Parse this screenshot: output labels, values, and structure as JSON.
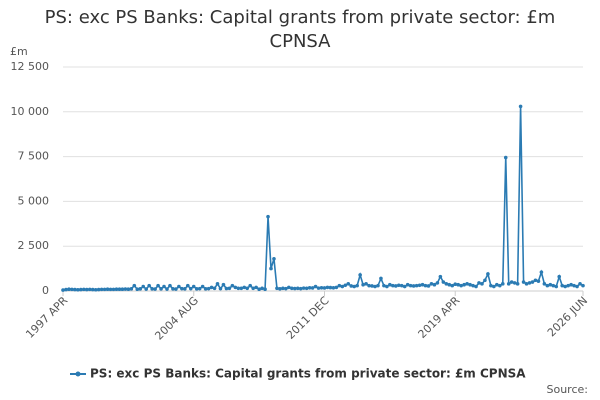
{
  "chart_data": {
    "type": "line",
    "title": "PS: exc PS Banks: Capital grants from private sector: £m CPNSA",
    "y_label": "£m",
    "source": "Source:",
    "categories": [
      "1997 APR",
      null,
      null,
      null,
      null,
      null,
      null,
      null,
      null,
      null,
      null,
      null,
      null,
      null,
      null,
      null,
      null,
      null,
      null,
      null,
      null,
      null,
      null,
      null,
      null,
      null,
      null,
      null,
      null,
      null,
      null,
      null,
      null,
      null,
      null,
      null,
      null,
      null,
      null,
      null,
      null,
      null,
      null,
      null,
      "2004 AUG",
      null,
      null,
      null,
      null,
      null,
      null,
      null,
      null,
      null,
      null,
      null,
      null,
      null,
      null,
      null,
      null,
      null,
      null,
      null,
      null,
      null,
      null,
      null,
      null,
      null,
      null,
      null,
      null,
      null,
      null,
      null,
      null,
      null,
      null,
      null,
      null,
      null,
      null,
      null,
      null,
      null,
      null,
      null,
      "2011 DEC",
      null,
      null,
      null,
      null,
      null,
      null,
      null,
      null,
      null,
      null,
      null,
      null,
      null,
      null,
      null,
      null,
      null,
      null,
      null,
      null,
      null,
      null,
      null,
      null,
      null,
      null,
      null,
      null,
      null,
      null,
      null,
      null,
      null,
      null,
      null,
      null,
      null,
      null,
      null,
      null,
      null,
      null,
      null,
      "2019 APR",
      null,
      null,
      null,
      null,
      null,
      null,
      null,
      null,
      null,
      null,
      null,
      null,
      null,
      null,
      null,
      null,
      null,
      null,
      null,
      null,
      null,
      null,
      null,
      null,
      null,
      null,
      null,
      null,
      null,
      null,
      null,
      null,
      null,
      null,
      null,
      null,
      null,
      null,
      null,
      null,
      null,
      null,
      "2026 JUN"
    ],
    "series": [
      {
        "name": "PS: exc PS Banks: Capital grants from private sector: £m CPNSA",
        "color": "#2b7bb3",
        "values": [
          50,
          80,
          100,
          90,
          80,
          70,
          80,
          90,
          80,
          90,
          80,
          70,
          80,
          90,
          90,
          100,
          90,
          90,
          100,
          100,
          100,
          110,
          100,
          120,
          300,
          100,
          120,
          250,
          110,
          300,
          120,
          110,
          300,
          120,
          250,
          110,
          300,
          120,
          110,
          250,
          130,
          120,
          300,
          130,
          250,
          120,
          130,
          250,
          120,
          130,
          200,
          150,
          400,
          130,
          350,
          140,
          150,
          300,
          200,
          150,
          150,
          200,
          150,
          300,
          150,
          200,
          100,
          150,
          100,
          4150,
          1250,
          1800,
          150,
          120,
          150,
          130,
          200,
          150,
          140,
          150,
          130,
          160,
          150,
          180,
          170,
          250,
          160,
          180,
          170,
          200,
          190,
          180,
          200,
          300,
          250,
          320,
          400,
          280,
          250,
          300,
          900,
          350,
          400,
          300,
          280,
          250,
          300,
          700,
          300,
          250,
          350,
          300,
          280,
          320,
          300,
          250,
          350,
          300,
          280,
          300,
          320,
          350,
          300,
          280,
          400,
          350,
          450,
          800,
          500,
          400,
          350,
          300,
          380,
          350,
          300,
          350,
          400,
          350,
          300,
          250,
          450,
          400,
          600,
          950,
          300,
          250,
          350,
          300,
          400,
          7450,
          400,
          500,
          450,
          400,
          10300,
          500,
          400,
          450,
          500,
          600,
          550,
          1050,
          400,
          300,
          350,
          300,
          250,
          800,
          300,
          250,
          300,
          350,
          300,
          250,
          400,
          300
        ]
      }
    ],
    "ylim": [
      0,
      12500
    ],
    "yticks": [
      {
        "value": 0,
        "label": "0"
      },
      {
        "value": 2500,
        "label": "2 500"
      },
      {
        "value": 5000,
        "label": "5 000"
      },
      {
        "value": 7500,
        "label": "7 500"
      },
      {
        "value": 10000,
        "label": "10 000"
      },
      {
        "value": 12500,
        "label": "12 500"
      }
    ],
    "grid": true,
    "legend": "bottom"
  }
}
